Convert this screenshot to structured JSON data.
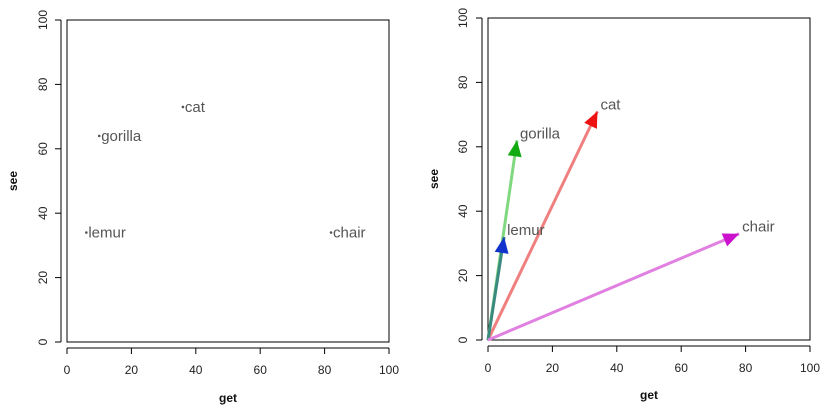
{
  "chart_data": [
    {
      "type": "scatter",
      "xlabel": "get",
      "ylabel": "see",
      "xlim": [
        0,
        100
      ],
      "ylim": [
        0,
        100
      ],
      "xticks": [
        0,
        20,
        40,
        60,
        80,
        100
      ],
      "yticks": [
        0,
        20,
        40,
        60,
        80,
        100
      ],
      "grid": false,
      "points": [
        {
          "label": "cat",
          "x": 36,
          "y": 73
        },
        {
          "label": "gorilla",
          "x": 10,
          "y": 64
        },
        {
          "label": "lemur",
          "x": 6,
          "y": 34
        },
        {
          "label": "chair",
          "x": 82,
          "y": 34
        }
      ]
    },
    {
      "type": "scatter",
      "xlabel": "get",
      "ylabel": "see",
      "xlim": [
        0,
        100
      ],
      "ylim": [
        0,
        100
      ],
      "xticks": [
        0,
        20,
        40,
        60,
        80,
        100
      ],
      "yticks": [
        0,
        20,
        40,
        60,
        80,
        100
      ],
      "grid": false,
      "vectors_from": [
        0,
        0
      ],
      "points": [
        {
          "label": "cat",
          "x": 34,
          "y": 71,
          "line_color": "#f08080",
          "head_color": "#ee1111"
        },
        {
          "label": "gorilla",
          "x": 9,
          "y": 62,
          "line_color": "#80d880",
          "head_color": "#11aa11"
        },
        {
          "label": "lemur",
          "x": 5,
          "y": 32,
          "line_color": "#3a8a80",
          "head_color": "#1133cc"
        },
        {
          "label": "chair",
          "x": 78,
          "y": 33,
          "line_color": "#e080e0",
          "head_color": "#cc11cc"
        }
      ]
    }
  ]
}
